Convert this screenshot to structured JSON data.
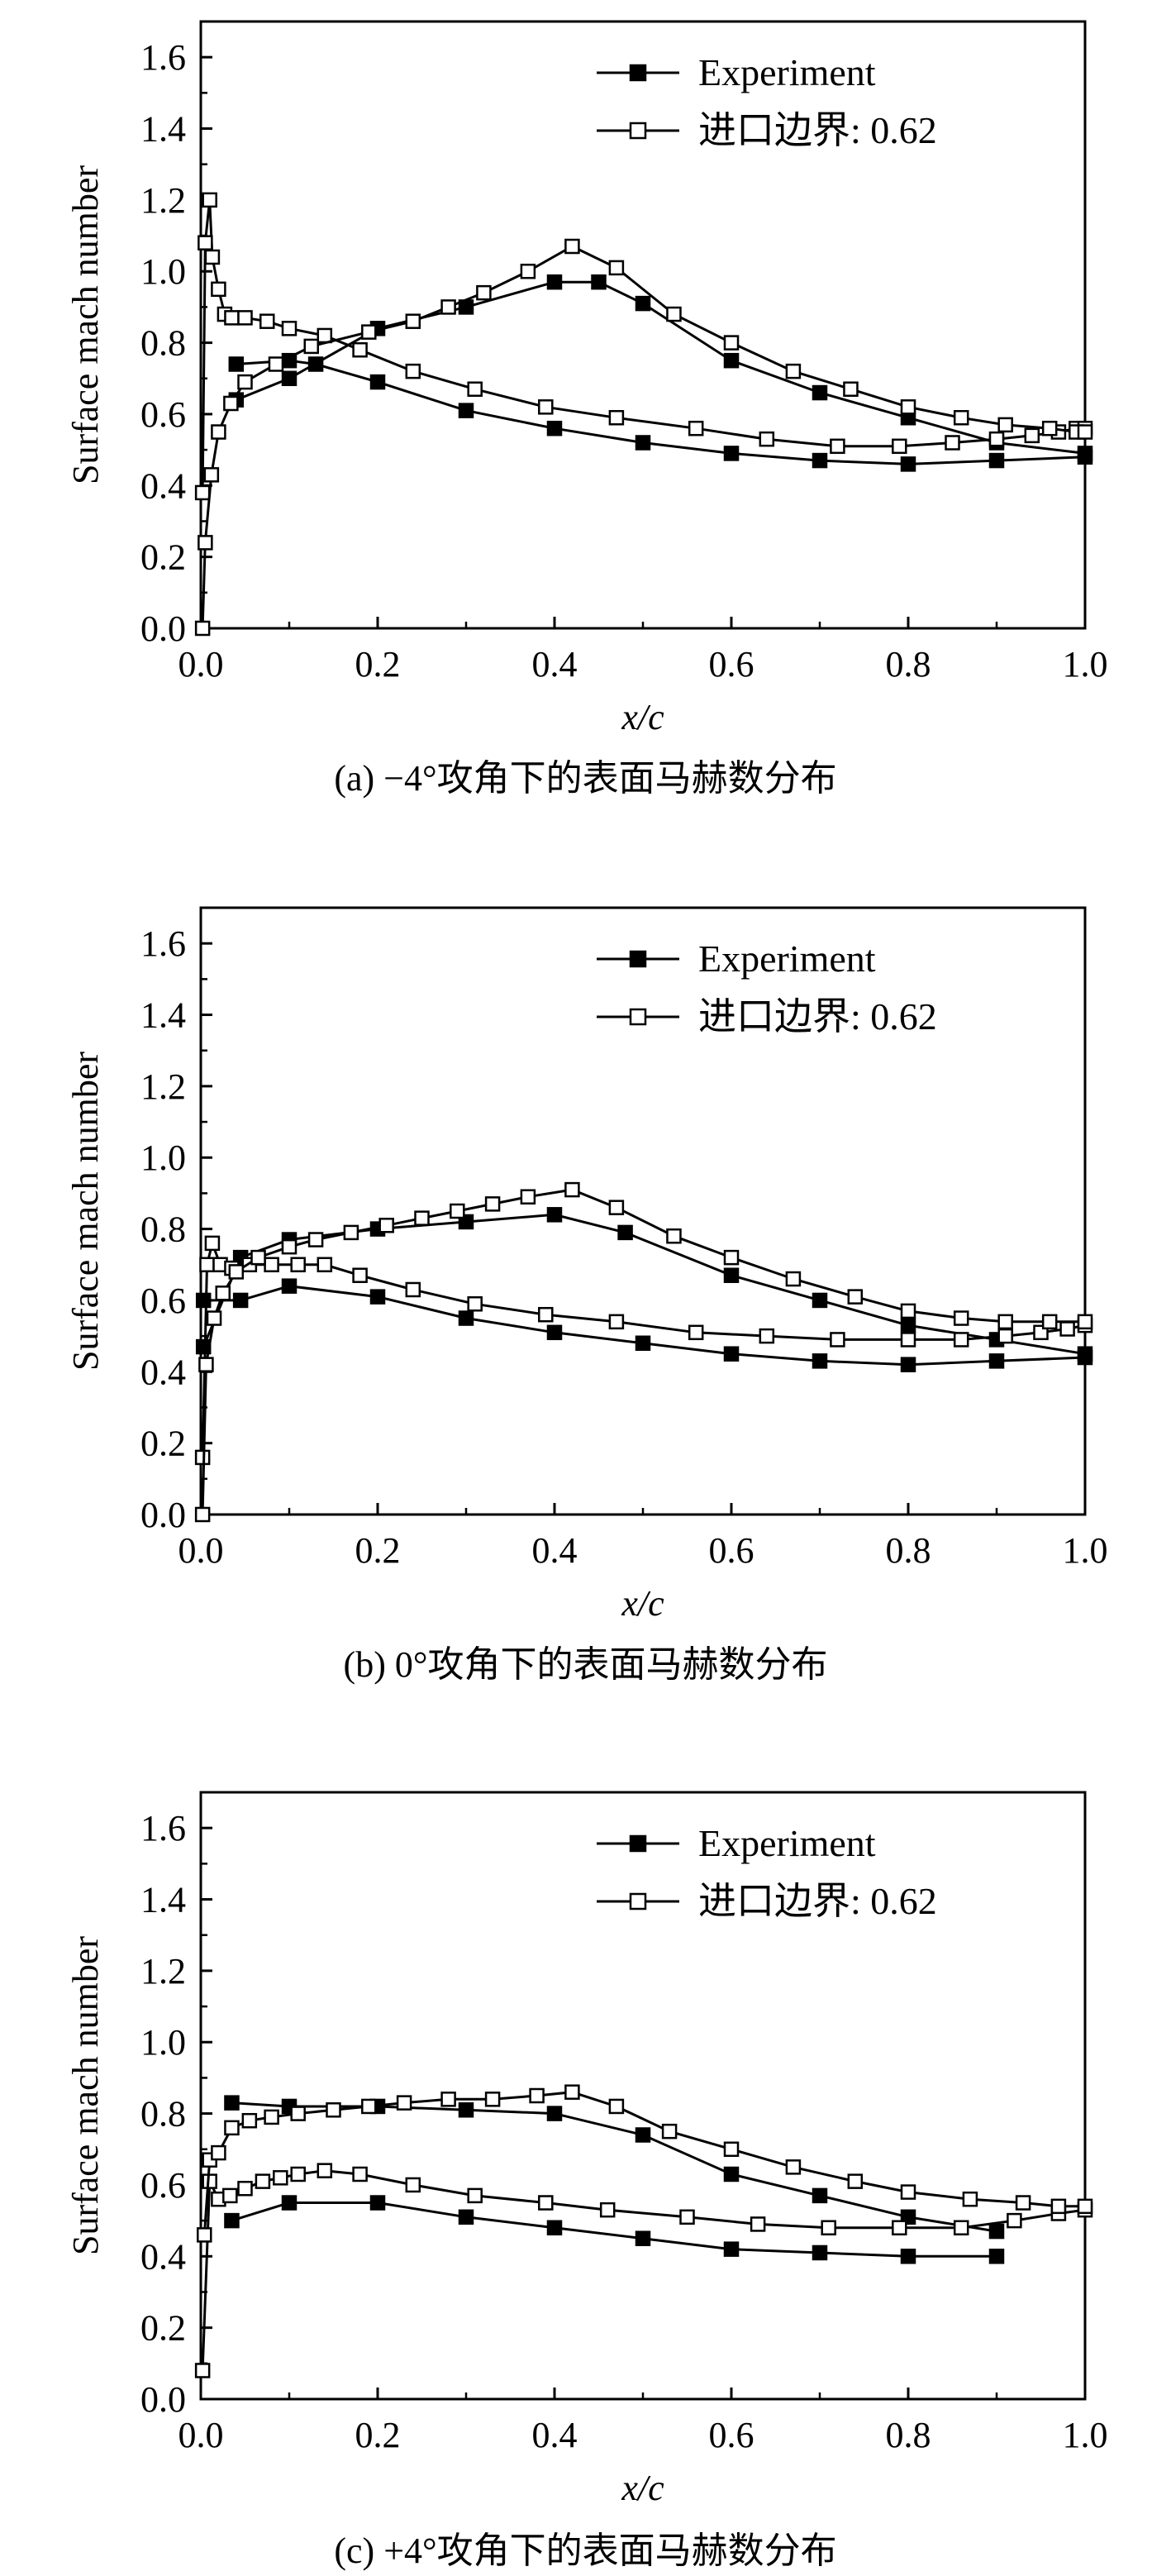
{
  "chart_data": [
    {
      "type": "line",
      "caption": "(a) −4°攻角下的表面马赫数分布",
      "xlabel": "x/c",
      "ylabel": "Surface mach number",
      "xlim": [
        0,
        1.0
      ],
      "ylim": [
        0,
        1.7
      ],
      "xticks": [
        "0.0",
        "0.2",
        "0.4",
        "0.6",
        "0.8",
        "1.0"
      ],
      "yticks": [
        "0.0",
        "0.2",
        "0.4",
        "0.6",
        "0.8",
        "1.0",
        "1.2",
        "1.4",
        "1.6"
      ],
      "legend_position": "top-right",
      "series": [
        {
          "name": "Experiment",
          "marker": "filled-square",
          "curves": [
            {
              "x": [
                0.04,
                0.1,
                0.13,
                0.2,
                0.3,
                0.4,
                0.5,
                0.6,
                0.7,
                0.8,
                0.9,
                1.0
              ],
              "y": [
                0.74,
                0.75,
                0.74,
                0.69,
                0.61,
                0.56,
                0.52,
                0.49,
                0.47,
                0.46,
                0.47,
                0.48
              ]
            },
            {
              "x": [
                0.04,
                0.1,
                0.2,
                0.3,
                0.4,
                0.45,
                0.5,
                0.6,
                0.7,
                0.8,
                0.9,
                1.0
              ],
              "y": [
                0.64,
                0.7,
                0.84,
                0.9,
                0.97,
                0.97,
                0.91,
                0.75,
                0.66,
                0.59,
                0.52,
                0.49
              ]
            }
          ]
        },
        {
          "name": "进口边界: 0.62",
          "marker": "open-square",
          "curves": [
            {
              "x": [
                0.002,
                0.005,
                0.01,
                0.013,
                0.02,
                0.027,
                0.035,
                0.05,
                0.075,
                0.1,
                0.14,
                0.18,
                0.24,
                0.31,
                0.39,
                0.47,
                0.56,
                0.64,
                0.72,
                0.79,
                0.85,
                0.9,
                0.94,
                0.97,
                0.99,
                1.0
              ],
              "y": [
                0.38,
                1.08,
                1.2,
                1.04,
                0.95,
                0.88,
                0.87,
                0.87,
                0.86,
                0.84,
                0.82,
                0.78,
                0.72,
                0.67,
                0.62,
                0.59,
                0.56,
                0.53,
                0.51,
                0.51,
                0.52,
                0.53,
                0.54,
                0.55,
                0.56,
                0.56
              ]
            },
            {
              "x": [
                0.002,
                0.005,
                0.012,
                0.02,
                0.034,
                0.05,
                0.085,
                0.125,
                0.19,
                0.24,
                0.28,
                0.32,
                0.37,
                0.42,
                0.47,
                0.535,
                0.6,
                0.67,
                0.735,
                0.8,
                0.86,
                0.91,
                0.96,
                0.99,
                1.0
              ],
              "y": [
                0.0,
                0.24,
                0.43,
                0.55,
                0.63,
                0.69,
                0.74,
                0.79,
                0.83,
                0.86,
                0.9,
                0.94,
                1.0,
                1.07,
                1.01,
                0.88,
                0.8,
                0.72,
                0.67,
                0.62,
                0.59,
                0.57,
                0.56,
                0.55,
                0.55
              ]
            }
          ]
        }
      ]
    },
    {
      "type": "line",
      "caption": "(b) 0°攻角下的表面马赫数分布",
      "xlabel": "x/c",
      "ylabel": "Surface mach number",
      "xlim": [
        0,
        1.0
      ],
      "ylim": [
        0,
        1.7
      ],
      "xticks": [
        "0.0",
        "0.2",
        "0.4",
        "0.6",
        "0.8",
        "1.0"
      ],
      "yticks": [
        "0.0",
        "0.2",
        "0.4",
        "0.6",
        "0.8",
        "1.0",
        "1.2",
        "1.4",
        "1.6"
      ],
      "legend_position": "top-right",
      "series": [
        {
          "name": "Experiment",
          "marker": "filled-square",
          "curves": [
            {
              "x": [
                0.003,
                0.045,
                0.1,
                0.2,
                0.3,
                0.4,
                0.5,
                0.6,
                0.7,
                0.8,
                0.9,
                1.0
              ],
              "y": [
                0.6,
                0.6,
                0.64,
                0.61,
                0.55,
                0.51,
                0.48,
                0.45,
                0.43,
                0.42,
                0.43,
                0.44
              ]
            },
            {
              "x": [
                0.003,
                0.045,
                0.1,
                0.2,
                0.3,
                0.4,
                0.48,
                0.6,
                0.7,
                0.8,
                0.9,
                1.0
              ],
              "y": [
                0.47,
                0.72,
                0.77,
                0.8,
                0.82,
                0.84,
                0.79,
                0.67,
                0.6,
                0.53,
                0.49,
                0.45
              ]
            }
          ]
        },
        {
          "name": "进口边界: 0.62",
          "marker": "open-square",
          "curves": [
            {
              "x": [
                0.002,
                0.007,
                0.013,
                0.022,
                0.035,
                0.055,
                0.08,
                0.11,
                0.14,
                0.18,
                0.24,
                0.31,
                0.39,
                0.47,
                0.56,
                0.64,
                0.72,
                0.8,
                0.86,
                0.91,
                0.95,
                0.98,
                1.0
              ],
              "y": [
                0.16,
                0.7,
                0.76,
                0.7,
                0.69,
                0.7,
                0.7,
                0.7,
                0.7,
                0.67,
                0.63,
                0.59,
                0.56,
                0.54,
                0.51,
                0.5,
                0.49,
                0.49,
                0.49,
                0.5,
                0.51,
                0.52,
                0.53
              ]
            },
            {
              "x": [
                0.002,
                0.006,
                0.015,
                0.025,
                0.04,
                0.065,
                0.1,
                0.13,
                0.17,
                0.21,
                0.25,
                0.29,
                0.33,
                0.37,
                0.42,
                0.47,
                0.535,
                0.6,
                0.67,
                0.74,
                0.8,
                0.86,
                0.91,
                0.96,
                1.0
              ],
              "y": [
                0.0,
                0.42,
                0.55,
                0.62,
                0.68,
                0.72,
                0.75,
                0.77,
                0.79,
                0.81,
                0.83,
                0.85,
                0.87,
                0.89,
                0.91,
                0.86,
                0.78,
                0.72,
                0.66,
                0.61,
                0.57,
                0.55,
                0.54,
                0.54,
                0.54
              ]
            }
          ]
        }
      ]
    },
    {
      "type": "line",
      "caption": "(c) +4°攻角下的表面马赫数分布",
      "xlabel": "x/c",
      "ylabel": "Surface mach number",
      "xlim": [
        0,
        1.0
      ],
      "ylim": [
        0,
        1.7
      ],
      "xticks": [
        "0.0",
        "0.2",
        "0.4",
        "0.6",
        "0.8",
        "1.0"
      ],
      "yticks": [
        "0.0",
        "0.2",
        "0.4",
        "0.6",
        "0.8",
        "1.0",
        "1.2",
        "1.4",
        "1.6"
      ],
      "legend_position": "top-right",
      "series": [
        {
          "name": "Experiment",
          "marker": "filled-square",
          "curves": [
            {
              "x": [
                0.035,
                0.1,
                0.2,
                0.3,
                0.4,
                0.5,
                0.6,
                0.7,
                0.8,
                0.9
              ],
              "y": [
                0.5,
                0.55,
                0.55,
                0.51,
                0.48,
                0.45,
                0.42,
                0.41,
                0.4,
                0.4
              ]
            },
            {
              "x": [
                0.035,
                0.1,
                0.2,
                0.3,
                0.4,
                0.5,
                0.6,
                0.7,
                0.8,
                0.9
              ],
              "y": [
                0.83,
                0.82,
                0.82,
                0.81,
                0.8,
                0.74,
                0.63,
                0.57,
                0.51,
                0.47
              ]
            }
          ]
        },
        {
          "name": "进口边界: 0.62",
          "marker": "open-square",
          "curves": [
            {
              "x": [
                0.002,
                0.01,
                0.02,
                0.033,
                0.05,
                0.07,
                0.09,
                0.11,
                0.14,
                0.18,
                0.24,
                0.31,
                0.39,
                0.46,
                0.55,
                0.63,
                0.71,
                0.79,
                0.86,
                0.92,
                0.97,
                1.0
              ],
              "y": [
                0.08,
                0.61,
                0.56,
                0.57,
                0.59,
                0.61,
                0.62,
                0.63,
                0.64,
                0.63,
                0.6,
                0.57,
                0.55,
                0.53,
                0.51,
                0.49,
                0.48,
                0.48,
                0.48,
                0.5,
                0.52,
                0.53
              ]
            },
            {
              "x": [
                0.004,
                0.01,
                0.02,
                0.035,
                0.055,
                0.08,
                0.11,
                0.15,
                0.19,
                0.23,
                0.28,
                0.33,
                0.38,
                0.42,
                0.47,
                0.53,
                0.6,
                0.67,
                0.74,
                0.8,
                0.87,
                0.93,
                0.97,
                1.0
              ],
              "y": [
                0.46,
                0.67,
                0.69,
                0.76,
                0.78,
                0.79,
                0.8,
                0.81,
                0.82,
                0.83,
                0.84,
                0.84,
                0.85,
                0.86,
                0.82,
                0.75,
                0.7,
                0.65,
                0.61,
                0.58,
                0.56,
                0.55,
                0.54,
                0.54
              ]
            }
          ]
        }
      ]
    }
  ]
}
